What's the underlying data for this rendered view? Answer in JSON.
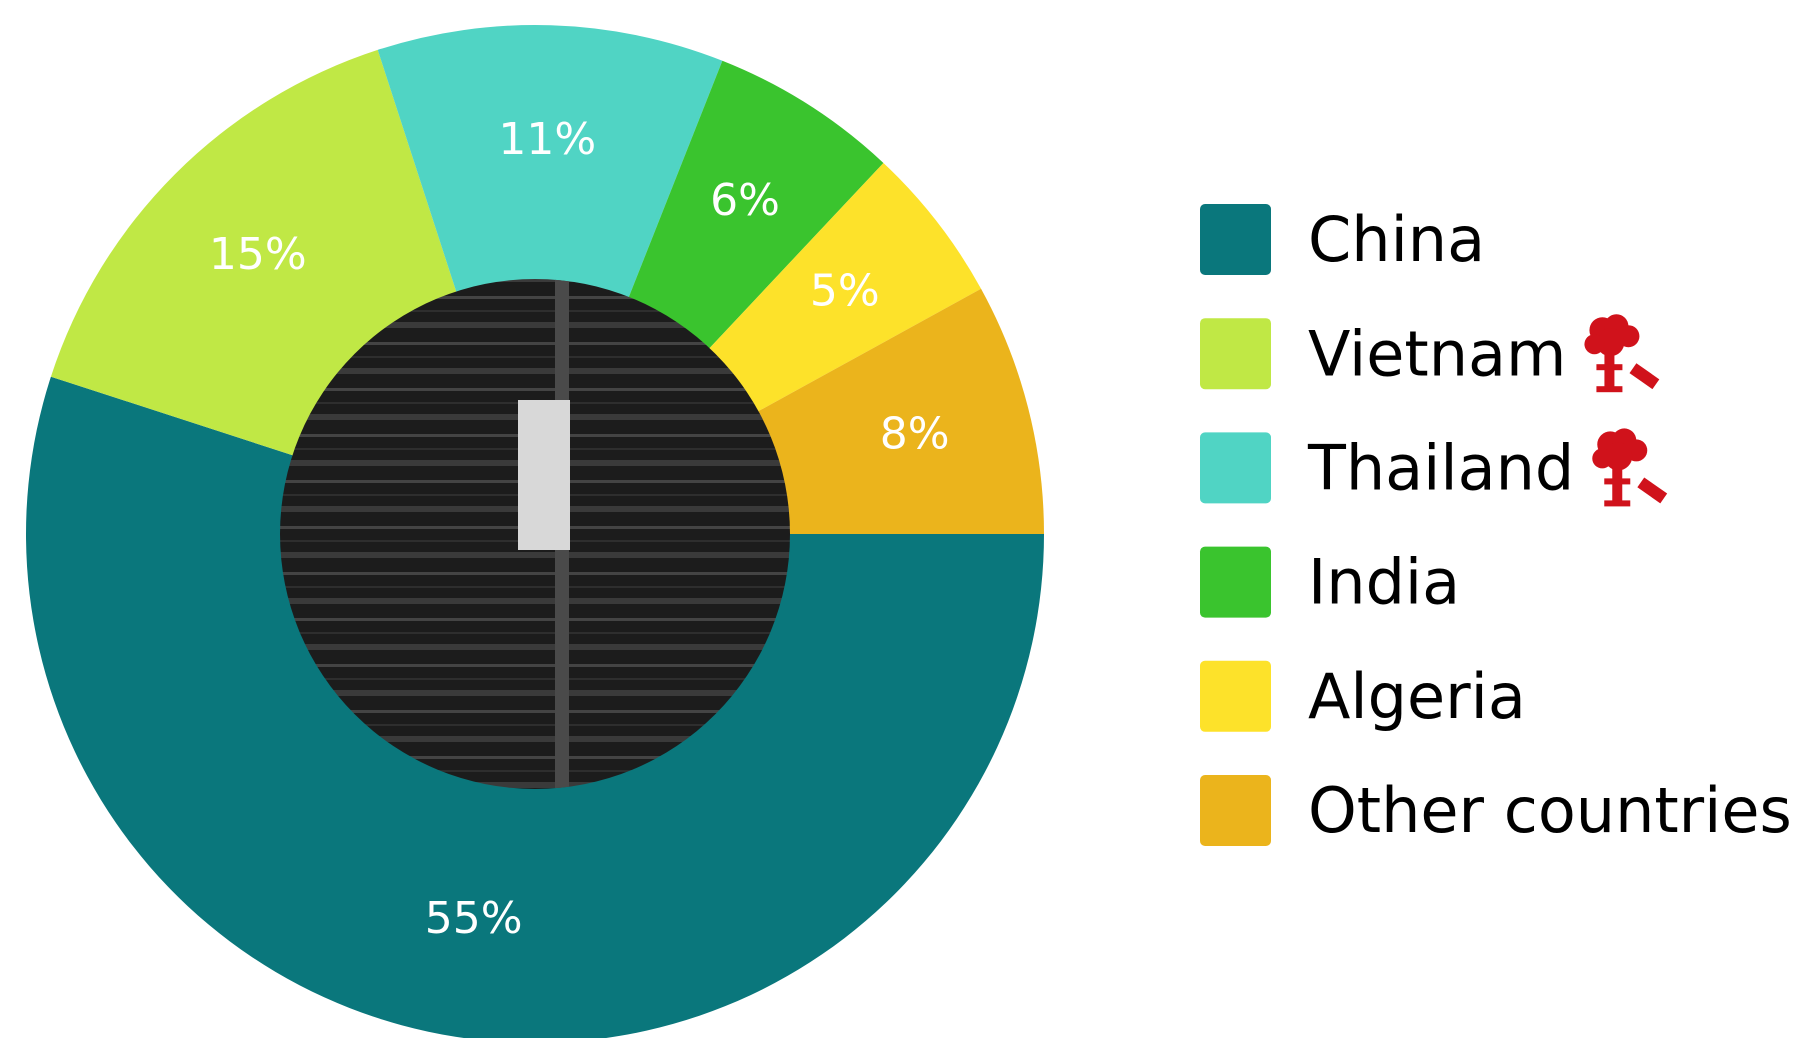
{
  "chart_data": {
    "type": "donut",
    "categories": [
      "China",
      "Vietnam",
      "Thailand",
      "India",
      "Algeria",
      "Other countries"
    ],
    "values": [
      55,
      15,
      11,
      6,
      5,
      8
    ],
    "value_labels": [
      "55%",
      "15%",
      "11%",
      "6%",
      "5%",
      "8%"
    ],
    "colors": [
      "#0a777c",
      "#c0e845",
      "#50d4c4",
      "#3ac42e",
      "#fde22a",
      "#ebb41c"
    ]
  }
}
